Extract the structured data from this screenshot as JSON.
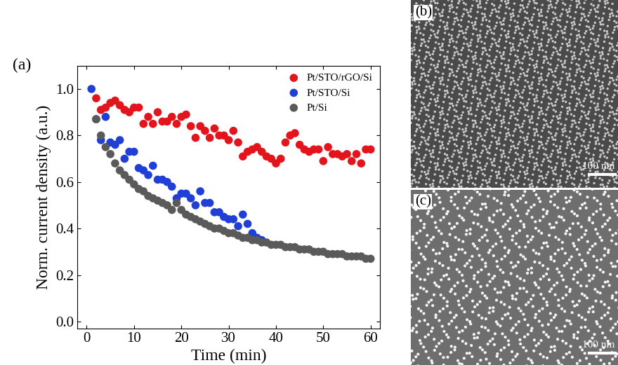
{
  "chart_data": {
    "type": "scatter",
    "x_label": "Time (min)",
    "y_label": "Norm. current density (a.u.)",
    "annotations": [
      "(a)"
    ],
    "marker": "o",
    "legend": "upper right",
    "xlim": [
      -2,
      62
    ],
    "xticks": [
      0,
      10,
      20,
      30,
      40,
      50,
      60
    ],
    "ylim": [
      -0.03,
      1.1
    ],
    "yticks": [
      {
        "value": 0,
        "label": "0.0"
      },
      {
        "value": 0.2,
        "label": "0.2"
      },
      {
        "value": 0.4,
        "label": "0.4"
      },
      {
        "value": 0.6,
        "label": "0.6"
      },
      {
        "value": 0.8,
        "label": "0.8"
      },
      {
        "value": 1.0,
        "label": "1.0"
      }
    ],
    "series": [
      {
        "name": "Pt/STO/rGO/Si",
        "color": "#e3141c",
        "x": [
          2,
          3,
          4,
          5,
          6,
          7,
          8,
          9,
          10,
          11,
          12,
          13,
          14,
          15,
          16,
          17,
          18,
          19,
          20,
          21,
          22,
          23,
          24,
          25,
          26,
          27,
          28,
          29,
          30,
          31,
          32,
          33,
          34,
          35,
          36,
          37,
          38,
          39,
          40,
          41,
          42,
          43,
          44,
          45,
          46,
          47,
          48,
          49,
          50,
          51,
          52,
          53,
          54,
          55,
          56,
          57,
          58,
          59,
          60
        ],
        "values": [
          0.96,
          0.91,
          0.92,
          0.94,
          0.95,
          0.93,
          0.91,
          0.9,
          0.92,
          0.92,
          0.85,
          0.88,
          0.85,
          0.9,
          0.86,
          0.86,
          0.88,
          0.85,
          0.88,
          0.89,
          0.84,
          0.79,
          0.84,
          0.82,
          0.79,
          0.83,
          0.8,
          0.8,
          0.78,
          0.82,
          0.77,
          0.71,
          0.73,
          0.74,
          0.75,
          0.73,
          0.71,
          0.7,
          0.68,
          0.7,
          0.77,
          0.8,
          0.81,
          0.76,
          0.74,
          0.73,
          0.74,
          0.74,
          0.69,
          0.75,
          0.72,
          0.72,
          0.71,
          0.72,
          0.69,
          0.72,
          0.68,
          0.74,
          0.74
        ]
      },
      {
        "name": "Pt/STO/Si",
        "color": "#1f3fd6",
        "x": [
          1,
          2,
          3,
          4,
          5,
          6,
          7,
          8,
          9,
          10,
          11,
          12,
          13,
          14,
          15,
          16,
          17,
          18,
          19,
          20,
          21,
          22,
          23,
          24,
          25,
          26,
          27,
          28,
          29,
          30,
          31,
          32,
          33,
          34,
          35,
          36,
          37
        ],
        "values": [
          1.0,
          0.87,
          0.78,
          0.88,
          0.77,
          0.76,
          0.78,
          0.7,
          0.73,
          0.73,
          0.66,
          0.65,
          0.63,
          0.67,
          0.61,
          0.61,
          0.6,
          0.58,
          0.53,
          0.55,
          0.55,
          0.53,
          0.5,
          0.56,
          0.51,
          0.51,
          0.47,
          0.47,
          0.45,
          0.44,
          0.44,
          0.41,
          0.46,
          0.42,
          0.38,
          0.36,
          0.35
        ]
      },
      {
        "name": "Pt/Si",
        "color": "#5a5a5a",
        "x": [
          2,
          3,
          4,
          5,
          6,
          7,
          8,
          9,
          10,
          11,
          12,
          13,
          14,
          15,
          16,
          17,
          18,
          19,
          20,
          21,
          22,
          23,
          24,
          25,
          26,
          27,
          28,
          29,
          30,
          31,
          32,
          33,
          34,
          35,
          36,
          37,
          38,
          39,
          40,
          41,
          42,
          43,
          44,
          45,
          46,
          47,
          48,
          49,
          50,
          51,
          52,
          53,
          54,
          55,
          56,
          57,
          58,
          59,
          60
        ],
        "values": [
          0.87,
          0.8,
          0.75,
          0.72,
          0.68,
          0.65,
          0.63,
          0.61,
          0.59,
          0.57,
          0.56,
          0.54,
          0.53,
          0.52,
          0.51,
          0.5,
          0.48,
          0.51,
          0.48,
          0.46,
          0.45,
          0.44,
          0.43,
          0.42,
          0.41,
          0.4,
          0.4,
          0.39,
          0.38,
          0.38,
          0.37,
          0.36,
          0.36,
          0.35,
          0.35,
          0.34,
          0.34,
          0.33,
          0.33,
          0.33,
          0.32,
          0.32,
          0.32,
          0.31,
          0.31,
          0.31,
          0.3,
          0.3,
          0.3,
          0.29,
          0.29,
          0.29,
          0.29,
          0.28,
          0.28,
          0.28,
          0.28,
          0.27,
          0.27
        ]
      }
    ]
  },
  "images": [
    {
      "label": "(b)",
      "scale_bar": "100 nm"
    },
    {
      "label": "(c)",
      "scale_bar": "100 nm"
    }
  ]
}
